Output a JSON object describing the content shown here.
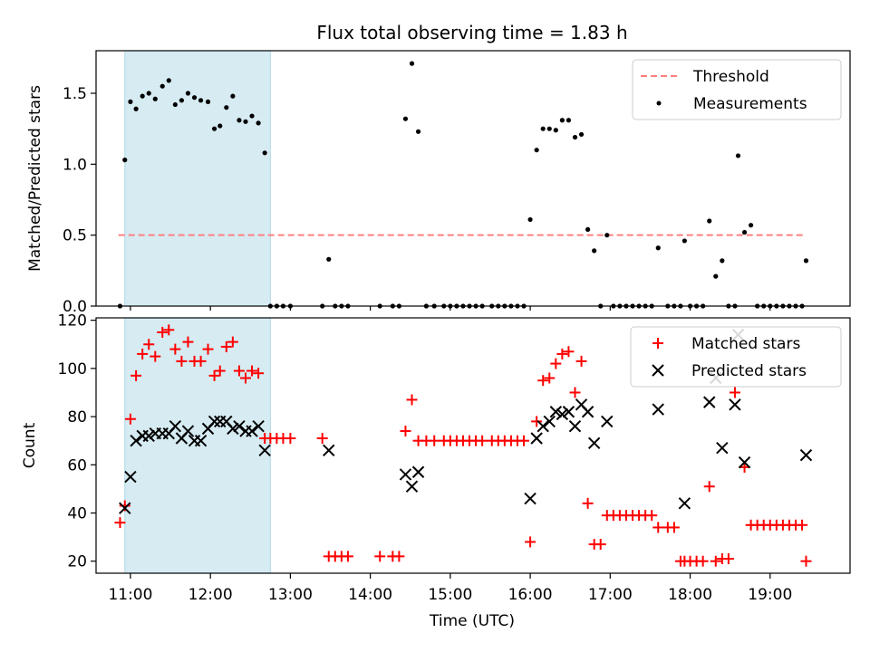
{
  "title": "Flux total observing time = 1.83 h",
  "colors": {
    "threshold": "#ff7f7f",
    "shade": "#add8e6",
    "matched": "#ff0000",
    "predicted": "#000000",
    "measurement": "#000000"
  },
  "chart_data": [
    {
      "type": "scatter",
      "title": "Flux total observing time = 1.83 h",
      "xlabel": "",
      "ylabel": "Matched/Predicted stars",
      "xlim": [
        10.57,
        20.0
      ],
      "ylim": [
        0,
        1.8
      ],
      "xticks": [
        11,
        12,
        13,
        14,
        15,
        16,
        17,
        18,
        19
      ],
      "yticks": [
        0.0,
        0.5,
        1.0,
        1.5
      ],
      "ytick_labels": [
        "0.0",
        "0.5",
        "1.0",
        "1.5"
      ],
      "shaded_span": [
        10.93,
        12.75
      ],
      "threshold": {
        "label": "Threshold",
        "value": 0.5,
        "x_range": [
          10.85,
          19.45
        ],
        "style": "dashed"
      },
      "series": [
        {
          "name": "Measurements",
          "points": [
            [
              10.87,
              0.0
            ],
            [
              10.93,
              1.03
            ],
            [
              11.0,
              1.44
            ],
            [
              11.07,
              1.39
            ],
            [
              11.15,
              1.48
            ],
            [
              11.23,
              1.5
            ],
            [
              11.31,
              1.46
            ],
            [
              11.4,
              1.55
            ],
            [
              11.48,
              1.59
            ],
            [
              11.56,
              1.42
            ],
            [
              11.64,
              1.45
            ],
            [
              11.72,
              1.5
            ],
            [
              11.8,
              1.47
            ],
            [
              11.88,
              1.45
            ],
            [
              11.97,
              1.44
            ],
            [
              12.05,
              1.25
            ],
            [
              12.12,
              1.27
            ],
            [
              12.2,
              1.4
            ],
            [
              12.28,
              1.48
            ],
            [
              12.36,
              1.31
            ],
            [
              12.44,
              1.3
            ],
            [
              12.52,
              1.34
            ],
            [
              12.6,
              1.29
            ],
            [
              12.68,
              1.08
            ],
            [
              12.75,
              0.0
            ],
            [
              12.83,
              0.0
            ],
            [
              12.91,
              0.0
            ],
            [
              13.0,
              0.0
            ],
            [
              13.4,
              0.0
            ],
            [
              13.48,
              0.33
            ],
            [
              13.56,
              0.0
            ],
            [
              13.64,
              0.0
            ],
            [
              13.72,
              0.0
            ],
            [
              14.12,
              0.0
            ],
            [
              14.28,
              0.0
            ],
            [
              14.36,
              0.0
            ],
            [
              14.44,
              1.32
            ],
            [
              14.52,
              1.71
            ],
            [
              14.6,
              1.23
            ],
            [
              14.7,
              0.0
            ],
            [
              14.8,
              0.0
            ],
            [
              14.92,
              0.0
            ],
            [
              15.0,
              0.0
            ],
            [
              15.08,
              0.0
            ],
            [
              15.16,
              0.0
            ],
            [
              15.24,
              0.0
            ],
            [
              15.32,
              0.0
            ],
            [
              15.4,
              0.0
            ],
            [
              15.52,
              0.0
            ],
            [
              15.6,
              0.0
            ],
            [
              15.68,
              0.0
            ],
            [
              15.76,
              0.0
            ],
            [
              15.84,
              0.0
            ],
            [
              15.92,
              0.0
            ],
            [
              16.0,
              0.61
            ],
            [
              16.08,
              1.1
            ],
            [
              16.16,
              1.25
            ],
            [
              16.24,
              1.25
            ],
            [
              16.32,
              1.24
            ],
            [
              16.4,
              1.31
            ],
            [
              16.48,
              1.31
            ],
            [
              16.56,
              1.19
            ],
            [
              16.64,
              1.21
            ],
            [
              16.72,
              0.54
            ],
            [
              16.8,
              0.39
            ],
            [
              16.88,
              0.0
            ],
            [
              16.96,
              0.5
            ],
            [
              17.04,
              0.0
            ],
            [
              17.12,
              0.0
            ],
            [
              17.2,
              0.0
            ],
            [
              17.28,
              0.0
            ],
            [
              17.36,
              0.0
            ],
            [
              17.44,
              0.0
            ],
            [
              17.52,
              0.0
            ],
            [
              17.6,
              0.41
            ],
            [
              17.72,
              0.0
            ],
            [
              17.8,
              0.0
            ],
            [
              17.88,
              0.0
            ],
            [
              17.93,
              0.46
            ],
            [
              18.0,
              0.0
            ],
            [
              18.08,
              0.0
            ],
            [
              18.16,
              0.0
            ],
            [
              18.24,
              0.6
            ],
            [
              18.32,
              0.21
            ],
            [
              18.4,
              0.32
            ],
            [
              18.48,
              0.0
            ],
            [
              18.56,
              0.0
            ],
            [
              18.6,
              1.06
            ],
            [
              18.68,
              0.52
            ],
            [
              18.76,
              0.57
            ],
            [
              18.84,
              0.0
            ],
            [
              18.92,
              0.0
            ],
            [
              19.0,
              0.0
            ],
            [
              19.08,
              0.0
            ],
            [
              19.16,
              0.0
            ],
            [
              19.24,
              0.0
            ],
            [
              19.32,
              0.0
            ],
            [
              19.4,
              0.0
            ],
            [
              19.45,
              0.32
            ]
          ]
        }
      ],
      "legend": {
        "location": "top-right",
        "entries": [
          "Threshold",
          "Measurements"
        ]
      }
    },
    {
      "type": "scatter",
      "title": "",
      "xlabel": "Time (UTC)",
      "ylabel": "Count",
      "xlim": [
        10.57,
        20.0
      ],
      "ylim": [
        15,
        121
      ],
      "xticks": [
        11,
        12,
        13,
        14,
        15,
        16,
        17,
        18,
        19
      ],
      "xtick_labels": [
        "11:00",
        "12:00",
        "13:00",
        "14:00",
        "15:00",
        "16:00",
        "17:00",
        "18:00",
        "19:00"
      ],
      "yticks": [
        20,
        40,
        60,
        80,
        100,
        120
      ],
      "ytick_labels": [
        "20",
        "40",
        "60",
        "80",
        "100",
        "120"
      ],
      "shaded_span": [
        10.93,
        12.75
      ],
      "series": [
        {
          "name": "Matched stars",
          "marker": "+",
          "points": [
            [
              10.87,
              36
            ],
            [
              10.93,
              43
            ],
            [
              11.0,
              79
            ],
            [
              11.07,
              97
            ],
            [
              11.15,
              106
            ],
            [
              11.23,
              110
            ],
            [
              11.31,
              105
            ],
            [
              11.4,
              115
            ],
            [
              11.48,
              116
            ],
            [
              11.56,
              108
            ],
            [
              11.64,
              103
            ],
            [
              11.72,
              111
            ],
            [
              11.8,
              103
            ],
            [
              11.88,
              103
            ],
            [
              11.97,
              108
            ],
            [
              12.05,
              97
            ],
            [
              12.12,
              99
            ],
            [
              12.2,
              109
            ],
            [
              12.28,
              111
            ],
            [
              12.36,
              99
            ],
            [
              12.44,
              96
            ],
            [
              12.52,
              99
            ],
            [
              12.6,
              98
            ],
            [
              12.68,
              71
            ],
            [
              12.75,
              71
            ],
            [
              12.83,
              71
            ],
            [
              12.91,
              71
            ],
            [
              13.0,
              71
            ],
            [
              13.4,
              71
            ],
            [
              13.48,
              22
            ],
            [
              13.56,
              22
            ],
            [
              13.64,
              22
            ],
            [
              13.72,
              22
            ],
            [
              14.12,
              22
            ],
            [
              14.28,
              22
            ],
            [
              14.36,
              22
            ],
            [
              14.44,
              74
            ],
            [
              14.52,
              87
            ],
            [
              14.6,
              70
            ],
            [
              14.7,
              70
            ],
            [
              14.8,
              70
            ],
            [
              14.92,
              70
            ],
            [
              15.0,
              70
            ],
            [
              15.08,
              70
            ],
            [
              15.16,
              70
            ],
            [
              15.24,
              70
            ],
            [
              15.32,
              70
            ],
            [
              15.4,
              70
            ],
            [
              15.52,
              70
            ],
            [
              15.6,
              70
            ],
            [
              15.68,
              70
            ],
            [
              15.76,
              70
            ],
            [
              15.84,
              70
            ],
            [
              15.92,
              70
            ],
            [
              16.0,
              28
            ],
            [
              16.08,
              78
            ],
            [
              16.16,
              95
            ],
            [
              16.24,
              96
            ],
            [
              16.32,
              102
            ],
            [
              16.4,
              106
            ],
            [
              16.48,
              107
            ],
            [
              16.56,
              90
            ],
            [
              16.64,
              103
            ],
            [
              16.72,
              44
            ],
            [
              16.8,
              27
            ],
            [
              16.88,
              27
            ],
            [
              16.96,
              39
            ],
            [
              17.04,
              39
            ],
            [
              17.12,
              39
            ],
            [
              17.2,
              39
            ],
            [
              17.28,
              39
            ],
            [
              17.36,
              39
            ],
            [
              17.44,
              39
            ],
            [
              17.52,
              39
            ],
            [
              17.6,
              34
            ],
            [
              17.72,
              34
            ],
            [
              17.8,
              34
            ],
            [
              17.88,
              20
            ],
            [
              17.93,
              20
            ],
            [
              18.0,
              20
            ],
            [
              18.08,
              20
            ],
            [
              18.16,
              20
            ],
            [
              18.24,
              51
            ],
            [
              18.32,
              20
            ],
            [
              18.4,
              21
            ],
            [
              18.48,
              21
            ],
            [
              18.56,
              90
            ],
            [
              18.68,
              59
            ],
            [
              18.76,
              35
            ],
            [
              18.84,
              35
            ],
            [
              18.92,
              35
            ],
            [
              19.0,
              35
            ],
            [
              19.08,
              35
            ],
            [
              19.16,
              35
            ],
            [
              19.24,
              35
            ],
            [
              19.32,
              35
            ],
            [
              19.4,
              35
            ],
            [
              19.45,
              20
            ]
          ]
        },
        {
          "name": "Predicted stars",
          "marker": "x",
          "points": [
            [
              10.93,
              42
            ],
            [
              11.0,
              55
            ],
            [
              11.07,
              70
            ],
            [
              11.15,
              72
            ],
            [
              11.23,
              72
            ],
            [
              11.31,
              73
            ],
            [
              11.4,
              73
            ],
            [
              11.48,
              73
            ],
            [
              11.56,
              76
            ],
            [
              11.64,
              71
            ],
            [
              11.72,
              74
            ],
            [
              11.8,
              70
            ],
            [
              11.88,
              70
            ],
            [
              11.97,
              75
            ],
            [
              12.05,
              78
            ],
            [
              12.12,
              78
            ],
            [
              12.2,
              78
            ],
            [
              12.28,
              75
            ],
            [
              12.36,
              76
            ],
            [
              12.44,
              74
            ],
            [
              12.52,
              74
            ],
            [
              12.6,
              76
            ],
            [
              12.68,
              66
            ],
            [
              13.48,
              66
            ],
            [
              14.44,
              56
            ],
            [
              14.52,
              51
            ],
            [
              14.6,
              57
            ],
            [
              16.0,
              46
            ],
            [
              16.08,
              71
            ],
            [
              16.16,
              76
            ],
            [
              16.24,
              78
            ],
            [
              16.32,
              82
            ],
            [
              16.4,
              81
            ],
            [
              16.48,
              82
            ],
            [
              16.56,
              76
            ],
            [
              16.64,
              85
            ],
            [
              16.72,
              82
            ],
            [
              16.8,
              69
            ],
            [
              16.96,
              78
            ],
            [
              17.6,
              83
            ],
            [
              17.93,
              44
            ],
            [
              18.24,
              86
            ],
            [
              18.32,
              96
            ],
            [
              18.4,
              67
            ],
            [
              18.56,
              85
            ],
            [
              18.6,
              114
            ],
            [
              18.68,
              61
            ],
            [
              19.45,
              64
            ]
          ]
        }
      ],
      "legend": {
        "location": "top-right",
        "entries": [
          "Matched stars",
          "Predicted stars"
        ]
      }
    }
  ]
}
